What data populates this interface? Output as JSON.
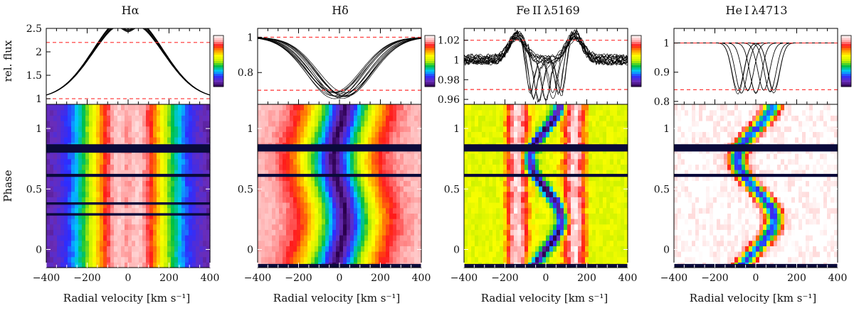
{
  "figure": {
    "shared_ylabel_top": "rel. flux",
    "shared_ylabel_bottom": "Phase",
    "xlabel": "Radial velocity [km s⁻¹]"
  },
  "colorbar_stops": [
    "#2b004d",
    "#6a2db8",
    "#2d2dff",
    "#00c8ff",
    "#00c040",
    "#c8f000",
    "#ffff00",
    "#ff9900",
    "#ff1a1a",
    "#ffb3b3",
    "#ffffff"
  ],
  "chart_data": [
    {
      "type": "line",
      "title": "Hα",
      "xlabel": "Radial velocity [km s⁻¹]",
      "xlim": [
        -400,
        400
      ],
      "xticks": [
        -400,
        -200,
        0,
        200,
        400
      ],
      "top": {
        "ylabel": "rel. flux",
        "ylim": [
          0.88,
          2.5
        ],
        "yticks": [
          1,
          1.5,
          2,
          2.5
        ],
        "ref_lines": [
          1.0,
          2.2
        ],
        "profile": {
          "kind": "emission",
          "continuum": 1.0,
          "peak": 2.2,
          "peak_sep_kms": 75,
          "width_kms": 150,
          "dip": 0.14
        }
      },
      "bottom": {
        "ylabel": "Phase",
        "ylim": [
          -0.15,
          1.2
        ],
        "yticks": [
          0,
          0.5,
          1
        ],
        "gaps": [
          [
            0.8,
            0.87
          ],
          [
            0.6,
            0.625
          ],
          [
            0.37,
            0.39
          ],
          [
            0.28,
            0.3
          ]
        ]
      }
    },
    {
      "type": "line",
      "title": "Hδ",
      "xlabel": "Radial velocity [km s⁻¹]",
      "xlim": [
        -400,
        400
      ],
      "xticks": [
        -400,
        -200,
        0,
        200,
        400
      ],
      "top": {
        "ylim": [
          0.62,
          1.05
        ],
        "yticks": [
          0.8,
          1
        ],
        "ref_lines": [
          1.0,
          0.7
        ],
        "profile": {
          "kind": "absorption",
          "continuum": 1.0,
          "depth": 0.33,
          "width_kms": 190,
          "shift_amp_kms": 30
        }
      },
      "bottom": {
        "ylim": [
          -0.15,
          1.2
        ],
        "yticks": [
          0,
          0.5,
          1
        ],
        "gaps": [
          [
            0.81,
            0.87
          ],
          [
            0.6,
            0.625
          ],
          [
            -0.15,
            -0.12
          ]
        ]
      }
    },
    {
      "type": "line",
      "title": "Fe II λ5169",
      "xlabel": "Radial velocity [km s⁻¹]",
      "xlim": [
        -400,
        400
      ],
      "xticks": [
        -400,
        -200,
        0,
        200,
        400
      ],
      "top": {
        "ylim": [
          0.955,
          1.032
        ],
        "yticks": [
          0.96,
          0.98,
          1,
          1.02
        ],
        "ref_lines": [
          1.02,
          0.97
        ],
        "profile": {
          "kind": "shell",
          "continuum": 1.0,
          "horn": 1.025,
          "horn_sep_kms": 140,
          "core_depth": 0.04,
          "shift_amp_kms": 80
        }
      },
      "bottom": {
        "ylim": [
          -0.15,
          1.2
        ],
        "yticks": [
          0,
          0.5,
          1
        ],
        "gaps": [
          [
            0.81,
            0.87
          ],
          [
            0.6,
            0.625
          ],
          [
            -0.15,
            -0.12
          ]
        ]
      }
    },
    {
      "type": "line",
      "title": "He I λ4713",
      "xlabel": "Radial velocity [km s⁻¹]",
      "xlim": [
        -400,
        400
      ],
      "xticks": [
        -400,
        -200,
        0,
        200,
        400
      ],
      "top": {
        "ylim": [
          0.79,
          1.05
        ],
        "yticks": [
          0.8,
          0.9,
          1
        ],
        "ref_lines": [
          1.0,
          0.84
        ],
        "profile": {
          "kind": "absorption",
          "continuum": 1.0,
          "depth": 0.17,
          "width_kms": 40,
          "shift_amp_kms": 90
        }
      },
      "bottom": {
        "ylim": [
          -0.15,
          1.2
        ],
        "yticks": [
          0,
          0.5,
          1
        ],
        "gaps": [
          [
            0.81,
            0.87
          ],
          [
            0.6,
            0.625
          ],
          [
            -0.15,
            -0.12
          ]
        ]
      }
    }
  ]
}
